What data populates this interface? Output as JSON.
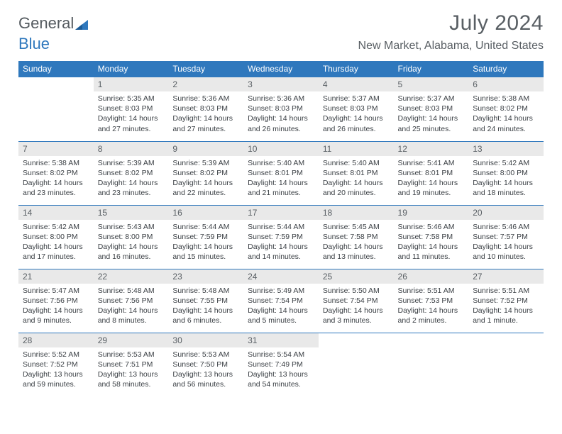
{
  "brand": {
    "part1": "General",
    "part2": "Blue"
  },
  "title": "July 2024",
  "location": "New Market, Alabama, United States",
  "colors": {
    "header_bg": "#2f78bd",
    "header_fg": "#ffffff",
    "daynum_bg": "#e9e9e9",
    "rule": "#2f78bd",
    "text": "#3a3f44",
    "muted": "#595f64"
  },
  "typography": {
    "title_fontsize": 30,
    "location_fontsize": 16,
    "weekday_fontsize": 12,
    "daynum_fontsize": 12,
    "body_fontsize": 10.5
  },
  "weekdays": [
    "Sunday",
    "Monday",
    "Tuesday",
    "Wednesday",
    "Thursday",
    "Friday",
    "Saturday"
  ],
  "weeks": [
    [
      null,
      {
        "n": "1",
        "sunrise": "5:35 AM",
        "sunset": "8:03 PM",
        "daylight": "14 hours and 27 minutes."
      },
      {
        "n": "2",
        "sunrise": "5:36 AM",
        "sunset": "8:03 PM",
        "daylight": "14 hours and 27 minutes."
      },
      {
        "n": "3",
        "sunrise": "5:36 AM",
        "sunset": "8:03 PM",
        "daylight": "14 hours and 26 minutes."
      },
      {
        "n": "4",
        "sunrise": "5:37 AM",
        "sunset": "8:03 PM",
        "daylight": "14 hours and 26 minutes."
      },
      {
        "n": "5",
        "sunrise": "5:37 AM",
        "sunset": "8:03 PM",
        "daylight": "14 hours and 25 minutes."
      },
      {
        "n": "6",
        "sunrise": "5:38 AM",
        "sunset": "8:02 PM",
        "daylight": "14 hours and 24 minutes."
      }
    ],
    [
      {
        "n": "7",
        "sunrise": "5:38 AM",
        "sunset": "8:02 PM",
        "daylight": "14 hours and 23 minutes."
      },
      {
        "n": "8",
        "sunrise": "5:39 AM",
        "sunset": "8:02 PM",
        "daylight": "14 hours and 23 minutes."
      },
      {
        "n": "9",
        "sunrise": "5:39 AM",
        "sunset": "8:02 PM",
        "daylight": "14 hours and 22 minutes."
      },
      {
        "n": "10",
        "sunrise": "5:40 AM",
        "sunset": "8:01 PM",
        "daylight": "14 hours and 21 minutes."
      },
      {
        "n": "11",
        "sunrise": "5:40 AM",
        "sunset": "8:01 PM",
        "daylight": "14 hours and 20 minutes."
      },
      {
        "n": "12",
        "sunrise": "5:41 AM",
        "sunset": "8:01 PM",
        "daylight": "14 hours and 19 minutes."
      },
      {
        "n": "13",
        "sunrise": "5:42 AM",
        "sunset": "8:00 PM",
        "daylight": "14 hours and 18 minutes."
      }
    ],
    [
      {
        "n": "14",
        "sunrise": "5:42 AM",
        "sunset": "8:00 PM",
        "daylight": "14 hours and 17 minutes."
      },
      {
        "n": "15",
        "sunrise": "5:43 AM",
        "sunset": "8:00 PM",
        "daylight": "14 hours and 16 minutes."
      },
      {
        "n": "16",
        "sunrise": "5:44 AM",
        "sunset": "7:59 PM",
        "daylight": "14 hours and 15 minutes."
      },
      {
        "n": "17",
        "sunrise": "5:44 AM",
        "sunset": "7:59 PM",
        "daylight": "14 hours and 14 minutes."
      },
      {
        "n": "18",
        "sunrise": "5:45 AM",
        "sunset": "7:58 PM",
        "daylight": "14 hours and 13 minutes."
      },
      {
        "n": "19",
        "sunrise": "5:46 AM",
        "sunset": "7:58 PM",
        "daylight": "14 hours and 11 minutes."
      },
      {
        "n": "20",
        "sunrise": "5:46 AM",
        "sunset": "7:57 PM",
        "daylight": "14 hours and 10 minutes."
      }
    ],
    [
      {
        "n": "21",
        "sunrise": "5:47 AM",
        "sunset": "7:56 PM",
        "daylight": "14 hours and 9 minutes."
      },
      {
        "n": "22",
        "sunrise": "5:48 AM",
        "sunset": "7:56 PM",
        "daylight": "14 hours and 8 minutes."
      },
      {
        "n": "23",
        "sunrise": "5:48 AM",
        "sunset": "7:55 PM",
        "daylight": "14 hours and 6 minutes."
      },
      {
        "n": "24",
        "sunrise": "5:49 AM",
        "sunset": "7:54 PM",
        "daylight": "14 hours and 5 minutes."
      },
      {
        "n": "25",
        "sunrise": "5:50 AM",
        "sunset": "7:54 PM",
        "daylight": "14 hours and 3 minutes."
      },
      {
        "n": "26",
        "sunrise": "5:51 AM",
        "sunset": "7:53 PM",
        "daylight": "14 hours and 2 minutes."
      },
      {
        "n": "27",
        "sunrise": "5:51 AM",
        "sunset": "7:52 PM",
        "daylight": "14 hours and 1 minute."
      }
    ],
    [
      {
        "n": "28",
        "sunrise": "5:52 AM",
        "sunset": "7:52 PM",
        "daylight": "13 hours and 59 minutes."
      },
      {
        "n": "29",
        "sunrise": "5:53 AM",
        "sunset": "7:51 PM",
        "daylight": "13 hours and 58 minutes."
      },
      {
        "n": "30",
        "sunrise": "5:53 AM",
        "sunset": "7:50 PM",
        "daylight": "13 hours and 56 minutes."
      },
      {
        "n": "31",
        "sunrise": "5:54 AM",
        "sunset": "7:49 PM",
        "daylight": "13 hours and 54 minutes."
      },
      null,
      null,
      null
    ]
  ],
  "labels": {
    "sunrise": "Sunrise:",
    "sunset": "Sunset:",
    "daylight": "Daylight:"
  }
}
